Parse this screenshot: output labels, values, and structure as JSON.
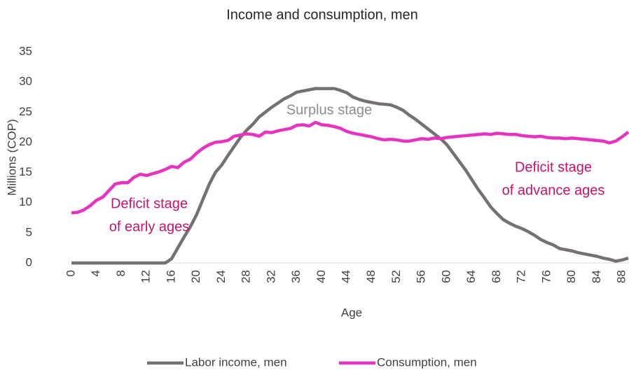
{
  "chart_data": {
    "type": "line",
    "title": "Income and consumption, men",
    "x_label": "Age",
    "y_label": "Millions (COP)",
    "x": [
      0,
      1,
      2,
      3,
      4,
      5,
      6,
      7,
      8,
      9,
      10,
      11,
      12,
      13,
      14,
      15,
      16,
      17,
      18,
      19,
      20,
      21,
      22,
      23,
      24,
      25,
      26,
      27,
      28,
      29,
      30,
      31,
      32,
      33,
      34,
      35,
      36,
      37,
      38,
      39,
      40,
      41,
      42,
      43,
      44,
      45,
      46,
      47,
      48,
      49,
      50,
      51,
      52,
      53,
      54,
      55,
      56,
      57,
      58,
      59,
      60,
      61,
      62,
      63,
      64,
      65,
      66,
      67,
      68,
      69,
      70,
      71,
      72,
      73,
      74,
      75,
      76,
      77,
      78,
      79,
      80,
      81,
      82,
      83,
      84,
      85,
      86,
      87,
      88,
      89
    ],
    "series": [
      {
        "name": "Labor income, men",
        "color": "#767171",
        "values": [
          0,
          0,
          0,
          0,
          0,
          0,
          0,
          0,
          0,
          0,
          0,
          0,
          0,
          0,
          0,
          0,
          0.7,
          2.5,
          4.3,
          6,
          8,
          10.5,
          13,
          15,
          16.2,
          17.8,
          19.3,
          20.8,
          22,
          23,
          24.2,
          25,
          25.8,
          26.5,
          27.2,
          27.7,
          28.3,
          28.5,
          28.7,
          28.9,
          28.9,
          28.9,
          28.9,
          28.6,
          28.2,
          27.5,
          27.1,
          26.8,
          26.6,
          26.4,
          26.3,
          26.2,
          25.8,
          25.3,
          24.5,
          23.8,
          23,
          22.2,
          21.4,
          20.6,
          19.6,
          18.2,
          16.8,
          15.4,
          13.8,
          12.2,
          10.8,
          9.3,
          8.2,
          7.2,
          6.6,
          6.1,
          5.7,
          5.2,
          4.6,
          3.9,
          3.4,
          3,
          2.4,
          2.2,
          2,
          1.7,
          1.5,
          1.3,
          1.1,
          0.8,
          0.6,
          0.3,
          0.5,
          0.8
        ]
      },
      {
        "name": "Consumption, men",
        "color": "#e633c0",
        "values": [
          8.3,
          8.4,
          8.8,
          9.5,
          10.4,
          10.9,
          12,
          13.1,
          13.3,
          13.3,
          14.2,
          14.7,
          14.5,
          14.8,
          15.1,
          15.5,
          16,
          15.8,
          16.7,
          17.2,
          18.2,
          19,
          19.6,
          20,
          20.1,
          20.3,
          21,
          21.2,
          21.4,
          21.3,
          21,
          21.7,
          21.6,
          21.9,
          22.1,
          22.3,
          22.8,
          22.9,
          22.7,
          23.3,
          22.9,
          22.8,
          22.6,
          22.3,
          21.8,
          21.5,
          21.3,
          21.1,
          20.9,
          20.6,
          20.4,
          20.5,
          20.4,
          20.2,
          20.2,
          20.4,
          20.6,
          20.5,
          20.7,
          20.6,
          20.8,
          20.9,
          21,
          21.1,
          21.2,
          21.3,
          21.4,
          21.3,
          21.5,
          21.4,
          21.3,
          21.3,
          21.1,
          21,
          20.9,
          21,
          20.8,
          20.7,
          20.7,
          20.6,
          20.7,
          20.6,
          20.5,
          20.4,
          20.3,
          20.2,
          19.9,
          20.2,
          20.9,
          21.7
        ]
      }
    ],
    "xlim": [
      0,
      89
    ],
    "xticks": [
      0,
      4,
      8,
      12,
      16,
      20,
      24,
      28,
      32,
      36,
      40,
      44,
      48,
      52,
      56,
      60,
      64,
      68,
      72,
      76,
      80,
      84,
      88
    ],
    "ylim": [
      0,
      35
    ],
    "yticks": [
      0,
      5,
      10,
      15,
      20,
      25,
      30,
      35
    ],
    "grid": false,
    "legend": "bottom",
    "annotations": [
      {
        "lines": [
          "Surplus stage"
        ],
        "color": "#8c8c8c"
      },
      {
        "lines": [
          "Deficit stage",
          "of early ages"
        ],
        "color": "#c0146e"
      },
      {
        "lines": [
          "Deficit stage",
          "of advance ages"
        ],
        "color": "#c0146e"
      }
    ]
  }
}
